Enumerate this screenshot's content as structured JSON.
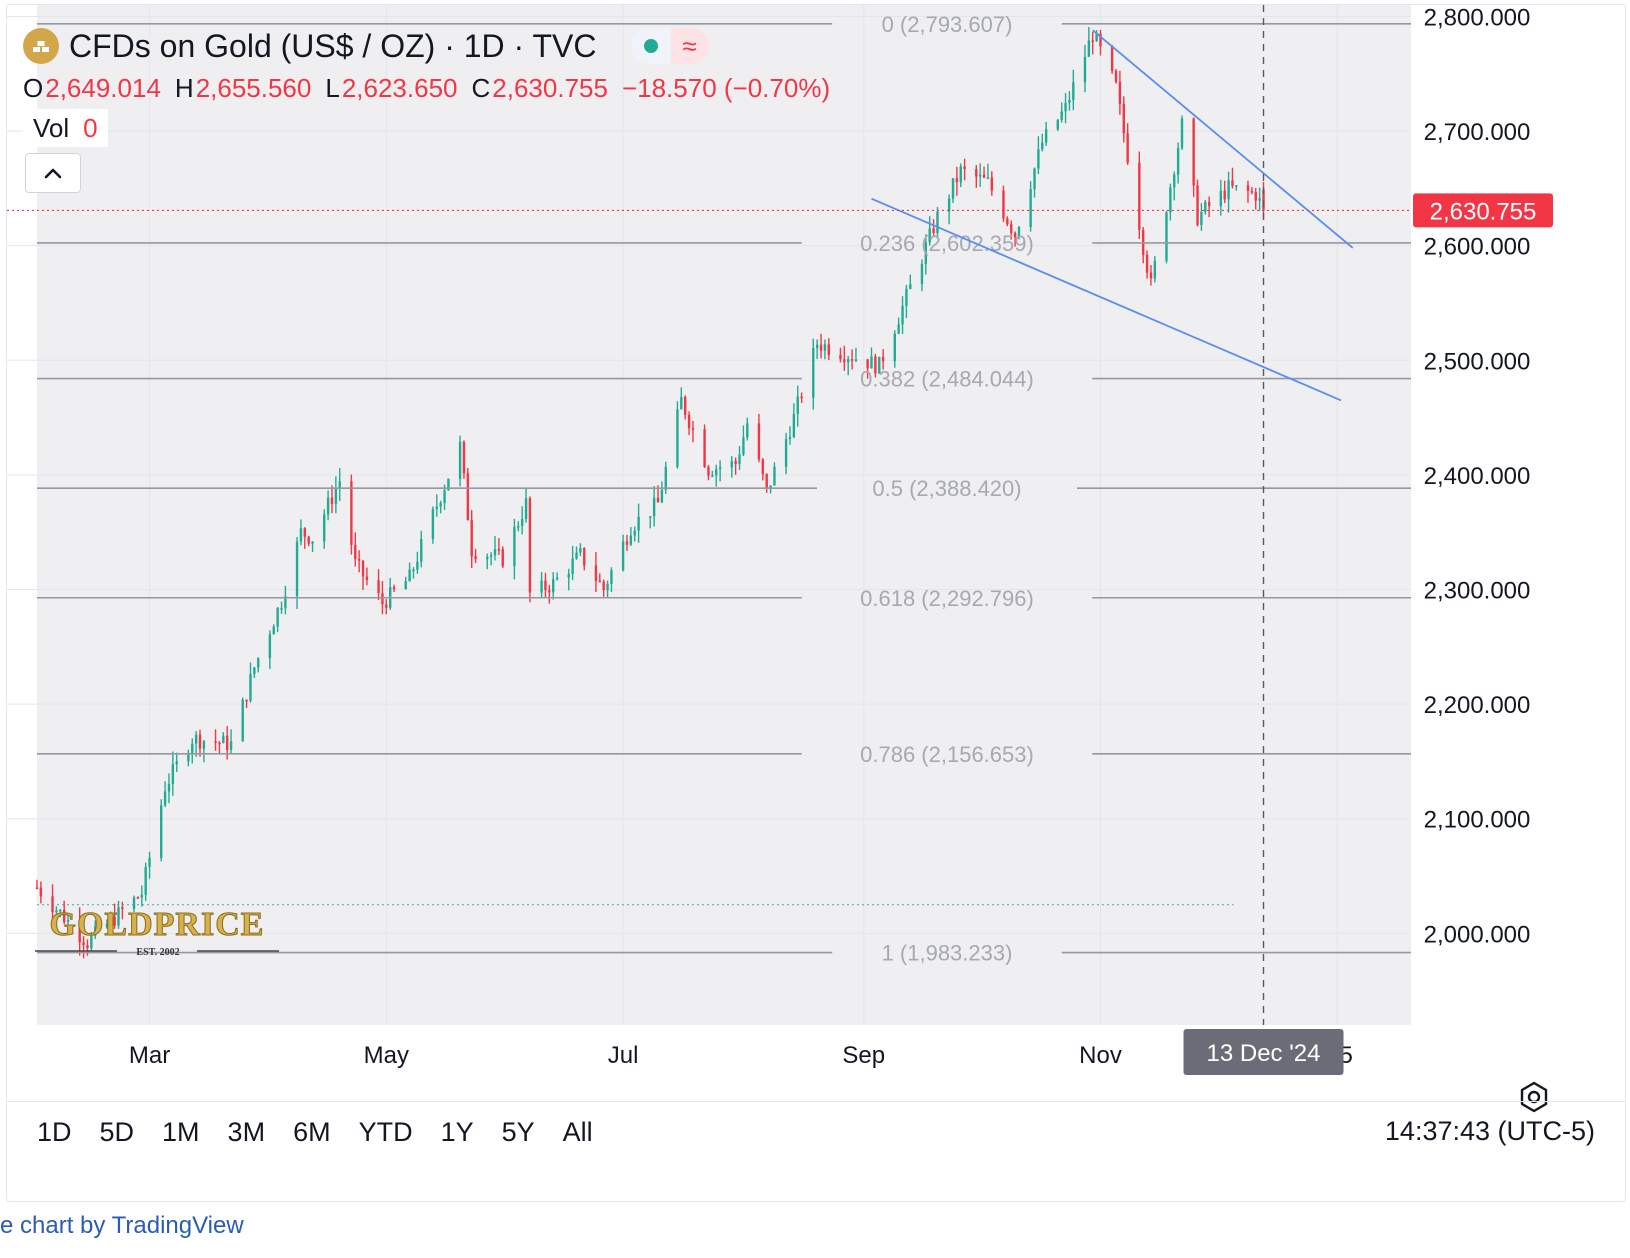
{
  "header": {
    "title": "CFDs on Gold (US$ / OZ) · 1D · TVC",
    "status_wave": "≈",
    "ohlc": [
      {
        "key": "O",
        "value": "2,649.014"
      },
      {
        "key": "H",
        "value": "2,655.560"
      },
      {
        "key": "L",
        "value": "2,623.650"
      },
      {
        "key": "C",
        "value": "2,630.755"
      }
    ],
    "change": "−18.570 (−0.70%)",
    "vol_label": "Vol",
    "vol_value": "0"
  },
  "colors": {
    "up": "#22ab94",
    "down": "#f23645",
    "trendline": "#5b8def",
    "fib": "#9598a1",
    "plot_bg": "#efeff2",
    "price_label": "#f23645"
  },
  "chart_data": {
    "type": "candlestick",
    "title": "CFDs on Gold (US$ / OZ)",
    "interval": "1D",
    "x_ticks": [
      "Mar",
      "May",
      "Jul",
      "Sep",
      "Nov",
      "'25"
    ],
    "x_tick_dates": [
      "2024-03-01",
      "2024-05-01",
      "2024-07-01",
      "2024-09-01",
      "2024-11-01",
      "2025-01-01"
    ],
    "x_range": [
      "2024-02-01",
      "2025-01-20"
    ],
    "y_ticks": [
      "2,800.000",
      "2,700.000",
      "2,600.000",
      "2,500.000",
      "2,400.000",
      "2,300.000",
      "2,200.000",
      "2,100.000",
      "2,000.000"
    ],
    "y_range": [
      1920,
      2810
    ],
    "last_price": 2630.755,
    "last_price_label": "2,630.755",
    "crosshair_date": "2024-12-13",
    "crosshair_label": "13 Dec '24",
    "reference_line_value": 2025,
    "fib_levels": [
      {
        "label": "0 (2,793.607)",
        "value": 2793.607
      },
      {
        "label": "0.236 (2,602.359)",
        "value": 2602.359
      },
      {
        "label": "0.382 (2,484.044)",
        "value": 2484.044
      },
      {
        "label": "0.5 (2,388.420)",
        "value": 2388.42
      },
      {
        "label": "0.618 (2,292.796)",
        "value": 2292.796
      },
      {
        "label": "0.786 (2,156.653)",
        "value": 2156.653
      },
      {
        "label": "1 (1,983.233)",
        "value": 1983.233
      }
    ],
    "trendlines": [
      {
        "name": "upper",
        "from": [
          "2024-10-30",
          2788
        ],
        "to": [
          "2025-01-05",
          2598
        ]
      },
      {
        "name": "lower",
        "from": [
          "2024-09-03",
          2641
        ],
        "to": [
          "2025-01-02",
          2465
        ]
      }
    ],
    "path": [
      [
        "2024-02-01",
        2040
      ],
      [
        "2024-02-14",
        1992
      ],
      [
        "2024-02-28",
        2035
      ],
      [
        "2024-03-05",
        2128
      ],
      [
        "2024-03-12",
        2170
      ],
      [
        "2024-03-22",
        2165
      ],
      [
        "2024-03-28",
        2232
      ],
      [
        "2024-04-04",
        2290
      ],
      [
        "2024-04-09",
        2350
      ],
      [
        "2024-04-12",
        2345
      ],
      [
        "2024-04-19",
        2395
      ],
      [
        "2024-04-23",
        2322
      ],
      [
        "2024-04-30",
        2288
      ],
      [
        "2024-05-07",
        2310
      ],
      [
        "2024-05-13",
        2365
      ],
      [
        "2024-05-20",
        2425
      ],
      [
        "2024-05-23",
        2335
      ],
      [
        "2024-05-31",
        2327
      ],
      [
        "2024-06-06",
        2375
      ],
      [
        "2024-06-07",
        2296
      ],
      [
        "2024-06-13",
        2305
      ],
      [
        "2024-06-20",
        2330
      ],
      [
        "2024-06-26",
        2300
      ],
      [
        "2024-07-03",
        2355
      ],
      [
        "2024-07-10",
        2375
      ],
      [
        "2024-07-16",
        2465
      ],
      [
        "2024-07-23",
        2405
      ],
      [
        "2024-07-30",
        2410
      ],
      [
        "2024-08-02",
        2445
      ],
      [
        "2024-08-07",
        2385
      ],
      [
        "2024-08-14",
        2450
      ],
      [
        "2024-08-20",
        2515
      ],
      [
        "2024-08-28",
        2505
      ],
      [
        "2024-09-05",
        2495
      ],
      [
        "2024-09-12",
        2555
      ],
      [
        "2024-09-20",
        2625
      ],
      [
        "2024-09-26",
        2665
      ],
      [
        "2024-10-03",
        2655
      ],
      [
        "2024-10-10",
        2610
      ],
      [
        "2024-10-17",
        2690
      ],
      [
        "2024-10-23",
        2720
      ],
      [
        "2024-10-30",
        2785
      ],
      [
        "2024-11-05",
        2738
      ],
      [
        "2024-11-12",
        2600
      ],
      [
        "2024-11-14",
        2565
      ],
      [
        "2024-11-22",
        2705
      ],
      [
        "2024-11-26",
        2625
      ],
      [
        "2024-12-04",
        2650
      ],
      [
        "2024-12-11",
        2645
      ],
      [
        "2024-12-13",
        2631
      ]
    ]
  },
  "ui": {
    "ranges": [
      "1D",
      "5D",
      "1M",
      "3M",
      "6M",
      "YTD",
      "1Y",
      "5Y",
      "All"
    ],
    "clock": "14:37:43 (UTC-5)",
    "footer": "e chart by TradingView",
    "watermark": "GOLDPRICE",
    "watermark_sub": "EST. 2002"
  }
}
